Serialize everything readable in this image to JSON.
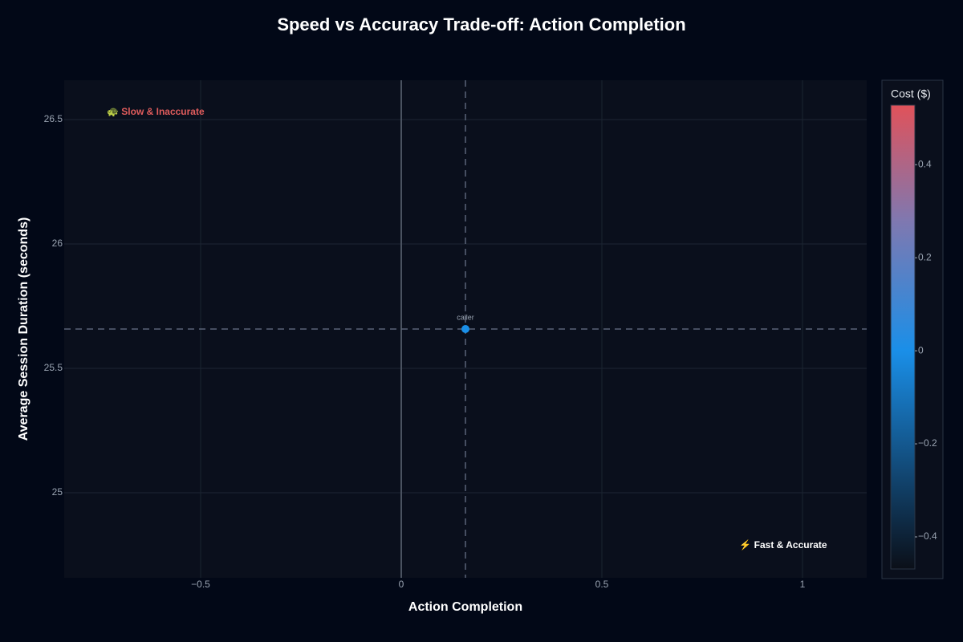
{
  "chart_data": {
    "type": "scatter",
    "title": "Speed vs Accuracy Trade-off: Action Completion",
    "x_label": "Action Completion",
    "y_label": "Average Session Duration (seconds)",
    "series": [
      {
        "x": [
          0.16
        ],
        "values": [
          25.658
        ],
        "labels": [
          "caller"
        ],
        "cost": [
          0
        ]
      }
    ],
    "xlim": [
      -0.84,
      1.16
    ],
    "ylim": [
      24.658,
      26.658
    ],
    "xticks": [
      {
        "value": -0.5,
        "label": "−0.5"
      },
      0,
      0.5,
      1
    ],
    "yticks": [
      25,
      25.5,
      26,
      26.5
    ],
    "grid": true,
    "mean_lines": true,
    "annotations": [
      {
        "text": "🐢 Slow & Inaccurate",
        "color": "#e05c5c"
      },
      {
        "text": "⚡ Fast & Accurate",
        "color": "#ffffff"
      }
    ],
    "colorbar": {
      "title": "Cost ($)",
      "lim": [
        -0.469,
        0.528
      ],
      "ticks": [
        {
          "value": -0.4,
          "label": "−0.4"
        },
        {
          "value": -0.2,
          "label": "−0.2"
        },
        0,
        0.2,
        0.4
      ],
      "colorscale": [
        [
          0,
          "#0b0f18"
        ],
        [
          0.47,
          "#1a8fe8"
        ],
        [
          0.75,
          "#7f78b0"
        ],
        [
          1,
          "#e0525a"
        ]
      ]
    }
  }
}
